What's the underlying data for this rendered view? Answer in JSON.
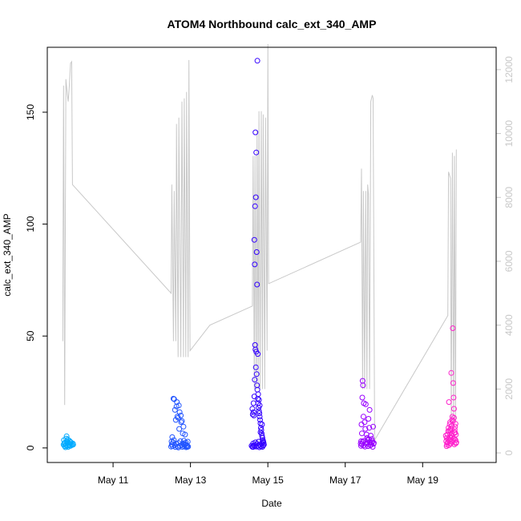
{
  "chart_data": {
    "type": "scatter",
    "title": "ATOM4 Northbound calc_ext_340_AMP",
    "xlabel": "Date",
    "ylabel": "calc_ext_340_AMP",
    "x_ticks": [
      "May 11",
      "May 13",
      "May 15",
      "May 17",
      "May 19"
    ],
    "x_tick_days": [
      11,
      13,
      15,
      17,
      19
    ],
    "xlim": [
      9.3,
      20.9
    ],
    "ylim": [
      -6.5,
      179
    ],
    "y_ticks": [
      0,
      50,
      100,
      150
    ],
    "y2_ticks": [
      0,
      2000,
      4000,
      6000,
      8000,
      10000,
      12000
    ],
    "y2lim": [
      -300,
      12700
    ],
    "grid": false,
    "legend": "none",
    "colors": {
      "line": "#c8c8c8",
      "right_axis": "#c8c8c8",
      "frame": "#000000"
    },
    "secondary_line": {
      "name": "",
      "points": [
        [
          9.7,
          3500
        ],
        [
          9.72,
          11500
        ],
        [
          9.75,
          1500
        ],
        [
          9.78,
          11700
        ],
        [
          9.82,
          11200
        ],
        [
          9.84,
          11000
        ],
        [
          9.87,
          11500
        ],
        [
          9.9,
          12200
        ],
        [
          9.93,
          12250
        ],
        [
          9.95,
          8400
        ],
        [
          12.5,
          5000
        ],
        [
          12.52,
          8400
        ],
        [
          12.56,
          3500
        ],
        [
          12.58,
          8200
        ],
        [
          12.62,
          3500
        ],
        [
          12.64,
          10300
        ],
        [
          12.68,
          3000
        ],
        [
          12.7,
          10500
        ],
        [
          12.75,
          3000
        ],
        [
          12.78,
          11000
        ],
        [
          12.82,
          3000
        ],
        [
          12.84,
          11100
        ],
        [
          12.88,
          3000
        ],
        [
          12.9,
          11300
        ],
        [
          12.94,
          3000
        ],
        [
          12.96,
          12300
        ],
        [
          12.99,
          3200
        ],
        [
          13.5,
          4000
        ],
        [
          14.6,
          4600
        ],
        [
          14.62,
          9300
        ],
        [
          14.65,
          2000
        ],
        [
          14.67,
          9300
        ],
        [
          14.7,
          2000
        ],
        [
          14.72,
          10100
        ],
        [
          14.75,
          2000
        ],
        [
          14.77,
          10700
        ],
        [
          14.8,
          2000
        ],
        [
          14.83,
          10700
        ],
        [
          14.86,
          2000
        ],
        [
          14.88,
          10600
        ],
        [
          14.92,
          2000
        ],
        [
          14.94,
          10500
        ],
        [
          14.98,
          3200
        ],
        [
          15.0,
          12800
        ],
        [
          15.02,
          5300
        ],
        [
          17.4,
          6600
        ],
        [
          17.42,
          8900
        ],
        [
          17.45,
          2000
        ],
        [
          17.47,
          8200
        ],
        [
          17.5,
          2000
        ],
        [
          17.53,
          8200
        ],
        [
          17.56,
          2000
        ],
        [
          17.58,
          8400
        ],
        [
          17.6,
          8100
        ],
        [
          17.63,
          2000
        ],
        [
          17.66,
          11000
        ],
        [
          17.7,
          11200
        ],
        [
          17.72,
          11100
        ],
        [
          17.76,
          400
        ],
        [
          19.65,
          4300
        ],
        [
          19.67,
          8800
        ],
        [
          19.72,
          8600
        ],
        [
          19.74,
          900
        ],
        [
          19.77,
          9400
        ],
        [
          19.8,
          800
        ],
        [
          19.82,
          9300
        ],
        [
          19.85,
          1000
        ],
        [
          19.87,
          9500
        ]
      ]
    },
    "series": [
      {
        "name": "",
        "color": "#00aaff",
        "points": [
          [
            9.72,
            1.5
          ],
          [
            9.74,
            2.0
          ],
          [
            9.75,
            0.8
          ],
          [
            9.76,
            2.4
          ],
          [
            9.78,
            1.2
          ],
          [
            9.79,
            4.2
          ],
          [
            9.8,
            5.2
          ],
          [
            9.81,
            2.8
          ],
          [
            9.82,
            1.0
          ],
          [
            9.84,
            0.5
          ],
          [
            9.85,
            2.2
          ],
          [
            9.86,
            1.6
          ],
          [
            9.88,
            3.1
          ],
          [
            9.9,
            0.9
          ],
          [
            9.91,
            2.5
          ],
          [
            9.92,
            1.8
          ],
          [
            9.94,
            1.3
          ],
          [
            9.96,
            2.0
          ],
          [
            9.97,
            1.5
          ],
          [
            9.73,
            3.5
          ],
          [
            9.77,
            0.3
          ],
          [
            9.83,
            3.8
          ],
          [
            9.87,
            1.1
          ],
          [
            9.89,
            2.6
          ]
        ]
      },
      {
        "name": "",
        "color": "#2255ff",
        "points": [
          [
            12.5,
            0.6
          ],
          [
            12.52,
            1.5
          ],
          [
            12.53,
            4.8
          ],
          [
            12.55,
            2.5
          ],
          [
            12.56,
            22.0
          ],
          [
            12.58,
            21.8
          ],
          [
            12.6,
            17.0
          ],
          [
            12.62,
            12.5
          ],
          [
            12.64,
            18.5
          ],
          [
            12.65,
            20.5
          ],
          [
            12.66,
            14.0
          ],
          [
            12.68,
            13.5
          ],
          [
            12.7,
            19.0
          ],
          [
            12.71,
            8.5
          ],
          [
            12.72,
            16.0
          ],
          [
            12.74,
            3.0
          ],
          [
            12.75,
            14.5
          ],
          [
            12.76,
            11.5
          ],
          [
            12.78,
            12.0
          ],
          [
            12.8,
            6.5
          ],
          [
            12.82,
            9.5
          ],
          [
            12.83,
            3.2
          ],
          [
            12.85,
            1.5
          ],
          [
            12.86,
            6.0
          ],
          [
            12.88,
            2.4
          ],
          [
            12.9,
            1.0
          ],
          [
            12.92,
            0.5
          ],
          [
            12.54,
            0.8
          ],
          [
            12.59,
            1.2
          ],
          [
            12.61,
            0.4
          ],
          [
            12.63,
            1.8
          ],
          [
            12.67,
            0.6
          ],
          [
            12.69,
            2.2
          ],
          [
            12.73,
            0.9
          ],
          [
            12.77,
            1.3
          ],
          [
            12.79,
            0.5
          ],
          [
            12.81,
            2.0
          ],
          [
            12.84,
            0.7
          ],
          [
            12.87,
            1.6
          ],
          [
            12.89,
            0.3
          ],
          [
            12.91,
            1.1
          ],
          [
            12.93,
            2.8
          ],
          [
            12.94,
            0.6
          ],
          [
            12.51,
            2.9
          ],
          [
            12.57,
            3.5
          ],
          [
            12.69,
            0.2
          ]
        ]
      },
      {
        "name": "",
        "color": "#3300ff",
        "points": [
          [
            14.58,
            1.0
          ],
          [
            14.6,
            17.5
          ],
          [
            14.61,
            15.0
          ],
          [
            14.62,
            2.0
          ],
          [
            14.63,
            16.0
          ],
          [
            14.64,
            14.5
          ],
          [
            14.65,
            93.0
          ],
          [
            14.66,
            82.0
          ],
          [
            14.67,
            108.0
          ],
          [
            14.68,
            141.0
          ],
          [
            14.69,
            112.0
          ],
          [
            14.7,
            132.0
          ],
          [
            14.71,
            87.5
          ],
          [
            14.72,
            73.0
          ],
          [
            14.73,
            173.0
          ],
          [
            14.74,
            42.0
          ],
          [
            14.66,
            30.5
          ],
          [
            14.67,
            46.0
          ],
          [
            14.68,
            44.0
          ],
          [
            14.69,
            36.0
          ],
          [
            14.7,
            43.0
          ],
          [
            14.71,
            33.0
          ],
          [
            14.72,
            28.0
          ],
          [
            14.73,
            26.0
          ],
          [
            14.74,
            22.0
          ],
          [
            14.75,
            20.0
          ],
          [
            14.76,
            18.0
          ],
          [
            14.77,
            16.5
          ],
          [
            14.78,
            15.5
          ],
          [
            14.79,
            14.0
          ],
          [
            14.8,
            12.5
          ],
          [
            14.81,
            11.0
          ],
          [
            14.82,
            9.0
          ],
          [
            14.83,
            8.0
          ],
          [
            14.84,
            6.5
          ],
          [
            14.85,
            5.5
          ],
          [
            14.86,
            4.5
          ],
          [
            14.87,
            3.5
          ],
          [
            14.88,
            3.0
          ],
          [
            14.89,
            2.2
          ],
          [
            14.9,
            1.5
          ],
          [
            14.6,
            0.5
          ],
          [
            14.62,
            0.4
          ],
          [
            14.64,
            1.2
          ],
          [
            14.66,
            0.8
          ],
          [
            14.68,
            2.5
          ],
          [
            14.7,
            0.6
          ],
          [
            14.72,
            1.8
          ],
          [
            14.74,
            0.9
          ],
          [
            14.76,
            2.8
          ],
          [
            14.78,
            0.3
          ],
          [
            14.8,
            1.4
          ],
          [
            14.82,
            0.7
          ],
          [
            14.84,
            2.0
          ],
          [
            14.86,
            0.5
          ],
          [
            14.88,
            1.1
          ],
          [
            14.63,
            20.0
          ],
          [
            14.65,
            23.0
          ],
          [
            14.75,
            24.0
          ],
          [
            14.77,
            21.5
          ],
          [
            14.79,
            19.0
          ],
          [
            14.81,
            7.0
          ],
          [
            14.85,
            10.5
          ],
          [
            14.87,
            2.6
          ]
        ]
      },
      {
        "name": "",
        "color": "#9900ff",
        "points": [
          [
            17.4,
            2.0
          ],
          [
            17.41,
            3.0
          ],
          [
            17.42,
            10.5
          ],
          [
            17.43,
            6.5
          ],
          [
            17.44,
            22.5
          ],
          [
            17.45,
            30.0
          ],
          [
            17.46,
            28.0
          ],
          [
            17.47,
            14.0
          ],
          [
            17.48,
            20.0
          ],
          [
            17.5,
            11.5
          ],
          [
            17.52,
            8.5
          ],
          [
            17.53,
            19.5
          ],
          [
            17.55,
            6.0
          ],
          [
            17.57,
            4.5
          ],
          [
            17.58,
            3.5
          ],
          [
            17.6,
            13.0
          ],
          [
            17.62,
            9.0
          ],
          [
            17.63,
            17.0
          ],
          [
            17.64,
            2.5
          ],
          [
            17.66,
            5.5
          ],
          [
            17.67,
            1.5
          ],
          [
            17.68,
            4.0
          ],
          [
            17.7,
            3.0
          ],
          [
            17.72,
            9.5
          ],
          [
            17.74,
            2.2
          ],
          [
            17.41,
            0.9
          ],
          [
            17.43,
            1.6
          ],
          [
            17.45,
            2.8
          ],
          [
            17.47,
            1.1
          ],
          [
            17.49,
            3.2
          ],
          [
            17.51,
            0.6
          ],
          [
            17.54,
            1.9
          ],
          [
            17.56,
            2.6
          ],
          [
            17.59,
            0.8
          ],
          [
            17.61,
            3.8
          ],
          [
            17.65,
            1.2
          ],
          [
            17.69,
            2.4
          ],
          [
            17.71,
            0.5
          ],
          [
            17.73,
            1.8
          ]
        ]
      },
      {
        "name": "",
        "color": "#ff22cc",
        "points": [
          [
            19.6,
            5.5
          ],
          [
            19.61,
            3.0
          ],
          [
            19.62,
            4.5
          ],
          [
            19.63,
            1.5
          ],
          [
            19.64,
            6.0
          ],
          [
            19.65,
            2.5
          ],
          [
            19.66,
            7.5
          ],
          [
            19.67,
            9.0
          ],
          [
            19.68,
            20.5
          ],
          [
            19.69,
            3.5
          ],
          [
            19.7,
            10.5
          ],
          [
            19.71,
            5.0
          ],
          [
            19.72,
            8.0
          ],
          [
            19.73,
            2.0
          ],
          [
            19.74,
            33.5
          ],
          [
            19.75,
            6.5
          ],
          [
            19.76,
            12.5
          ],
          [
            19.77,
            14.0
          ],
          [
            19.78,
            53.5
          ],
          [
            19.79,
            29.0
          ],
          [
            19.8,
            22.5
          ],
          [
            19.81,
            17.5
          ],
          [
            19.82,
            7.0
          ],
          [
            19.83,
            4.0
          ],
          [
            19.84,
            9.5
          ],
          [
            19.85,
            3.5
          ],
          [
            19.86,
            6.0
          ],
          [
            19.87,
            2.5
          ],
          [
            19.62,
            0.8
          ],
          [
            19.64,
            2.2
          ],
          [
            19.66,
            3.8
          ],
          [
            19.68,
            1.2
          ],
          [
            19.7,
            4.8
          ],
          [
            19.72,
            1.9
          ],
          [
            19.74,
            5.6
          ],
          [
            19.76,
            2.8
          ],
          [
            19.78,
            3.2
          ],
          [
            19.8,
            4.2
          ],
          [
            19.82,
            1.6
          ],
          [
            19.84,
            6.8
          ],
          [
            19.86,
            2.1
          ],
          [
            19.69,
            7.8
          ],
          [
            19.71,
            11.5
          ],
          [
            19.73,
            8.6
          ],
          [
            19.75,
            10.0
          ],
          [
            19.77,
            5.2
          ],
          [
            19.79,
            12.0
          ],
          [
            19.81,
            13.5
          ],
          [
            19.83,
            8.2
          ],
          [
            19.85,
            10.8
          ]
        ]
      }
    ]
  }
}
